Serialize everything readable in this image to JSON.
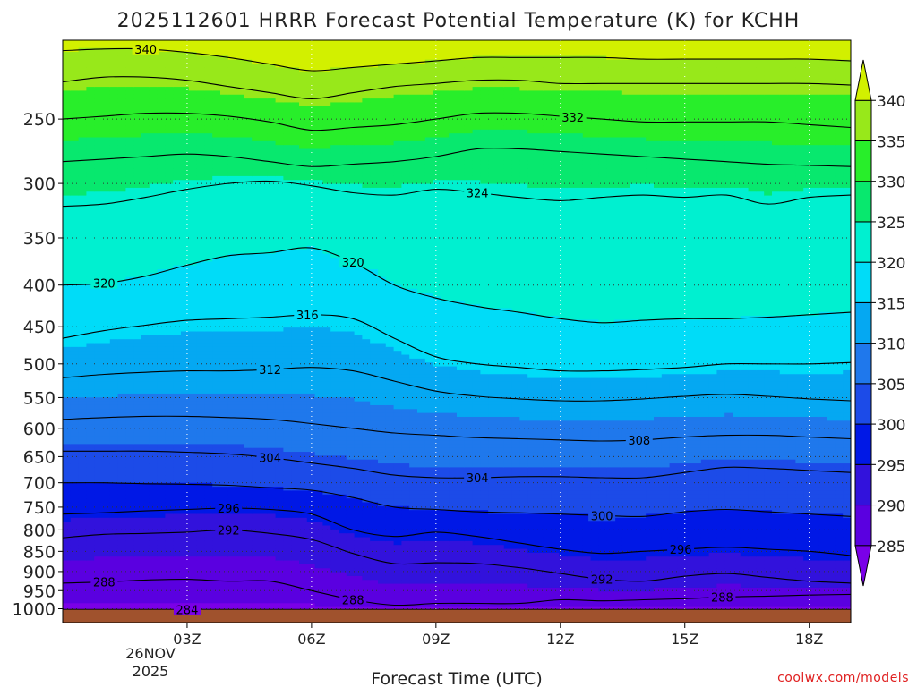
{
  "chart_data": {
    "type": "heatmap",
    "title": "2025112601 HRRR Forecast Potential Temperature (K) for KCHH",
    "xlabel": "Forecast Time (UTC)",
    "ylabel": "",
    "credit": "coolwx.com/models",
    "y_scale": "log",
    "y_inverted": true,
    "xlim": [
      0,
      19
    ],
    "ylim": [
      1040,
      200
    ],
    "x_ticks": [
      {
        "value": 3,
        "label": "03Z"
      },
      {
        "value": 6,
        "label": "06Z"
      },
      {
        "value": 9,
        "label": "09Z"
      },
      {
        "value": 12,
        "label": "12Z"
      },
      {
        "value": 15,
        "label": "15Z"
      },
      {
        "value": 18,
        "label": "18Z"
      }
    ],
    "x_date_label": [
      "26NOV",
      "2025"
    ],
    "y_ticks": [
      250,
      300,
      350,
      400,
      450,
      500,
      550,
      600,
      650,
      700,
      750,
      800,
      850,
      900,
      950,
      1000
    ],
    "grid": true,
    "surface_pressure": 1003,
    "colorbar": {
      "levels": [
        285,
        290,
        295,
        300,
        305,
        310,
        315,
        320,
        325,
        330,
        335,
        340
      ],
      "colors": [
        "#7a00e8",
        "#5a00e0",
        "#3212dc",
        "#0018e6",
        "#1c4be8",
        "#1f78ec",
        "#05a8f2",
        "#00dcf8",
        "#00f0d0",
        "#08e86e",
        "#28ee2a",
        "#98e81a",
        "#d2f000"
      ]
    },
    "columns_x": [
      0,
      1,
      2,
      3,
      4,
      5,
      6,
      7,
      8,
      9,
      10,
      11,
      12,
      13,
      14,
      15,
      16,
      17,
      18,
      19
    ],
    "contour_interval": 4,
    "isentropes": [
      {
        "theta": 284,
        "p": [
          1002,
          1002,
          1002,
          1002,
          1002,
          1002,
          1002,
          1002,
          1002,
          1002,
          1002,
          1002,
          1002,
          1002,
          1002,
          1002,
          1002,
          1002,
          1002,
          1002
        ]
      },
      {
        "theta": 288,
        "p": [
          930,
          927,
          922,
          920,
          925,
          925,
          950,
          975,
          990,
          985,
          985,
          985,
          975,
          978,
          975,
          972,
          967,
          965,
          962,
          960
        ]
      },
      {
        "theta": 292,
        "p": [
          818,
          810,
          808,
          805,
          800,
          808,
          822,
          855,
          880,
          878,
          880,
          890,
          905,
          920,
          925,
          912,
          905,
          915,
          925,
          930
        ]
      },
      {
        "theta": 296,
        "p": [
          765,
          762,
          758,
          755,
          752,
          755,
          765,
          800,
          815,
          805,
          815,
          830,
          845,
          855,
          850,
          845,
          840,
          845,
          850,
          860
        ]
      },
      {
        "theta": 300,
        "p": [
          700,
          700,
          702,
          703,
          705,
          710,
          715,
          730,
          750,
          755,
          760,
          762,
          765,
          768,
          770,
          760,
          755,
          760,
          765,
          770
        ]
      },
      {
        "theta": 304,
        "p": [
          640,
          640,
          640,
          642,
          645,
          652,
          662,
          672,
          685,
          690,
          690,
          688,
          688,
          690,
          690,
          680,
          670,
          672,
          676,
          680
        ]
      },
      {
        "theta": 308,
        "p": [
          585,
          582,
          580,
          580,
          582,
          585,
          592,
          600,
          608,
          612,
          616,
          618,
          620,
          622,
          620,
          615,
          612,
          612,
          615,
          618
        ]
      },
      {
        "theta": 312,
        "p": [
          520,
          515,
          512,
          510,
          510,
          508,
          505,
          510,
          525,
          540,
          548,
          552,
          555,
          555,
          552,
          548,
          545,
          548,
          552,
          555
        ]
      },
      {
        "theta": 316,
        "p": [
          465,
          455,
          448,
          442,
          440,
          438,
          435,
          440,
          465,
          490,
          500,
          505,
          510,
          510,
          508,
          505,
          500,
          500,
          500,
          498
        ]
      },
      {
        "theta": 320,
        "p": [
          400,
          398,
          390,
          378,
          368,
          365,
          360,
          375,
          400,
          415,
          425,
          432,
          440,
          445,
          442,
          440,
          440,
          438,
          435,
          432
        ]
      },
      {
        "theta": 324,
        "p": [
          320,
          318,
          312,
          305,
          300,
          298,
          302,
          308,
          310,
          305,
          308,
          312,
          315,
          312,
          310,
          312,
          310,
          318,
          312,
          310
        ]
      },
      {
        "theta": 328,
        "p": [
          282,
          280,
          278,
          276,
          278,
          282,
          286,
          284,
          282,
          278,
          272,
          272,
          274,
          276,
          278,
          280,
          282,
          284,
          285,
          286
        ]
      },
      {
        "theta": 332,
        "p": [
          250,
          248,
          246,
          246,
          248,
          252,
          258,
          256,
          254,
          250,
          246,
          246,
          248,
          250,
          252,
          252,
          252,
          252,
          254,
          256
        ]
      },
      {
        "theta": 336,
        "p": [
          225,
          222,
          222,
          224,
          228,
          232,
          236,
          232,
          228,
          226,
          224,
          224,
          226,
          226,
          226,
          226,
          226,
          226,
          226,
          227
        ]
      },
      {
        "theta": 340,
        "p": [
          206,
          205,
          205,
          207,
          210,
          214,
          218,
          216,
          214,
          212,
          210,
          210,
          210,
          210,
          211,
          211,
          211,
          211,
          211,
          212
        ]
      }
    ],
    "contour_labels": [
      {
        "theta": 340,
        "x": 2.0
      },
      {
        "theta": 332,
        "x": 12.3
      },
      {
        "theta": 324,
        "x": 10.0
      },
      {
        "theta": 320,
        "x": 1.0
      },
      {
        "theta": 320,
        "x": 7.0
      },
      {
        "theta": 316,
        "x": 5.9
      },
      {
        "theta": 312,
        "x": 5.0
      },
      {
        "theta": 308,
        "x": 13.9
      },
      {
        "theta": 304,
        "x": 5.0
      },
      {
        "theta": 304,
        "x": 10.0
      },
      {
        "theta": 300,
        "x": 13.0
      },
      {
        "theta": 296,
        "x": 4.0
      },
      {
        "theta": 296,
        "x": 14.9
      },
      {
        "theta": 292,
        "x": 4.0
      },
      {
        "theta": 292,
        "x": 13.0
      },
      {
        "theta": 288,
        "x": 1.0
      },
      {
        "theta": 288,
        "x": 7.0
      },
      {
        "theta": 288,
        "x": 15.9
      },
      {
        "theta": 284,
        "x": 3.0
      }
    ]
  }
}
